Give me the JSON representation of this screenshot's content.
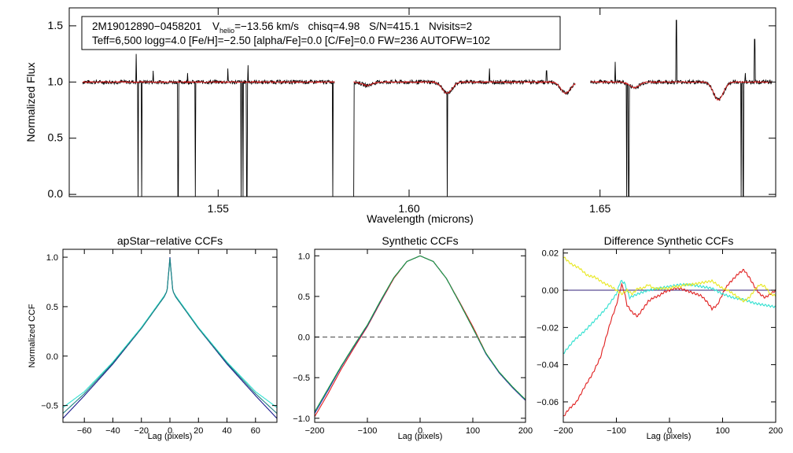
{
  "chart_data": [
    {
      "type": "line",
      "id": "spectrum",
      "xlabel": "Wavelength (microns)",
      "ylabel": "Normalized Flux",
      "xlim": [
        1.511,
        1.696
      ],
      "ylim": [
        -0.02,
        1.66
      ],
      "xticks": [
        1.55,
        1.6,
        1.65
      ],
      "xtick_labels": [
        "1.55",
        "1.60",
        "1.65"
      ],
      "yticks": [
        0.0,
        0.5,
        1.0,
        1.5
      ],
      "ytick_labels": [
        "0.0",
        "0.5",
        "1.0",
        "1.5"
      ],
      "annotation": {
        "star": "2M19012890−0458201",
        "vhelio_prefix": "V",
        "vhelio_sub": "helio",
        "vhelio_value": "=−13.56 km/s",
        "chisq": "chisq=4.98",
        "snr": "S/N=415.1",
        "nvisits": "Nvisits=2",
        "line2": "Teff=6,500 logg=4.0 [Fe/H]=−2.50 [alpha/Fe]=0.0 [C/Fe]=0.0 FW=236 AUTOFW=102"
      },
      "chips": [
        [
          1.5145,
          1.5805
        ],
        [
          1.5855,
          1.6435
        ],
        [
          1.6475,
          1.695
        ]
      ],
      "continuum": 1.0,
      "absorption_features": [
        {
          "center": 1.589,
          "depth": 0.03
        },
        {
          "center": 1.61,
          "depth": 0.1
        },
        {
          "center": 1.641,
          "depth": 0.1
        },
        {
          "center": 1.659,
          "depth": 0.05
        },
        {
          "center": 1.681,
          "depth": 0.16
        }
      ],
      "bad_pixels": [
        1.529,
        1.53,
        1.5395,
        1.544,
        1.556,
        1.5565,
        1.5575,
        1.58,
        1.5855,
        1.61,
        1.657,
        1.6575,
        1.687,
        1.6875
      ],
      "emission_spikes": [
        {
          "x": 1.5285,
          "y": 1.25
        },
        {
          "x": 1.533,
          "y": 1.1
        },
        {
          "x": 1.542,
          "y": 1.08
        },
        {
          "x": 1.5525,
          "y": 1.12
        },
        {
          "x": 1.5578,
          "y": 1.15
        },
        {
          "x": 1.621,
          "y": 1.12
        },
        {
          "x": 1.636,
          "y": 1.1
        },
        {
          "x": 1.644,
          "y": 1.08
        },
        {
          "x": 1.654,
          "y": 1.18
        },
        {
          "x": 1.67,
          "y": 1.55
        },
        {
          "x": 1.688,
          "y": 1.08
        },
        {
          "x": 1.6905,
          "y": 1.38
        }
      ],
      "series": [
        {
          "name": "observed",
          "color": "#000000"
        },
        {
          "name": "model",
          "color": "#e02020"
        }
      ]
    },
    {
      "type": "line",
      "id": "apstar_ccf",
      "title": "apStar−relative CCFs",
      "xlabel": "Lag (pixels)",
      "ylabel": "Normalized CCF",
      "xlim": [
        -75,
        75
      ],
      "ylim": [
        -0.67,
        1.08
      ],
      "xticks": [
        -60,
        -40,
        -20,
        0,
        20,
        40,
        60
      ],
      "xtick_labels": [
        "−60",
        "−40",
        "−20",
        "0",
        "20",
        "40",
        "60"
      ],
      "yticks": [
        -0.5,
        0.0,
        0.5,
        1.0
      ],
      "ytick_labels": [
        "−0.5",
        "0.0",
        "0.5",
        "1.0"
      ],
      "series": [
        {
          "name": "visit-1",
          "color": "#1a1a8c",
          "x": [
            -75,
            -60,
            -40,
            -20,
            -10,
            -4,
            -2,
            0,
            2,
            4,
            10,
            20,
            40,
            60,
            75
          ],
          "y": [
            -0.63,
            -0.4,
            -0.08,
            0.28,
            0.48,
            0.6,
            0.66,
            1.0,
            0.66,
            0.6,
            0.48,
            0.28,
            -0.08,
            -0.4,
            -0.63
          ]
        },
        {
          "name": "visit-2",
          "color": "#30e0d0",
          "x": [
            -75,
            -60,
            -40,
            -20,
            -10,
            -4,
            -2,
            0,
            2,
            4,
            10,
            20,
            40,
            60,
            75
          ],
          "y": [
            -0.52,
            -0.36,
            -0.06,
            0.29,
            0.49,
            0.61,
            0.66,
            0.98,
            0.66,
            0.61,
            0.49,
            0.29,
            -0.06,
            -0.36,
            -0.52
          ]
        },
        {
          "name": "visit-3",
          "color": "#208080",
          "x": [
            -75,
            -60,
            -40,
            -20,
            -10,
            -4,
            -2,
            0,
            2,
            4,
            10,
            20,
            40,
            60,
            75
          ],
          "y": [
            -0.58,
            -0.38,
            -0.07,
            0.28,
            0.48,
            0.6,
            0.66,
            0.99,
            0.66,
            0.6,
            0.48,
            0.28,
            -0.07,
            -0.38,
            -0.58
          ]
        }
      ]
    },
    {
      "type": "line",
      "id": "synthetic_ccf",
      "title": "Synthetic CCFs",
      "xlabel": "Lag (pixels)",
      "xlim": [
        -200,
        200
      ],
      "ylim": [
        -1.05,
        1.08
      ],
      "xticks": [
        -200,
        -100,
        0,
        100,
        200
      ],
      "xtick_labels": [
        "−200",
        "−100",
        "0",
        "100",
        "200"
      ],
      "yticks": [
        -1.0,
        -0.5,
        0.0,
        0.5,
        1.0
      ],
      "ytick_labels": [
        "−1.0",
        "−0.5",
        "0.0",
        "0.5",
        "1.0"
      ],
      "zero_line": 0.0,
      "series": [
        {
          "name": "synth-red",
          "color": "#e02020",
          "x": [
            -200,
            -175,
            -150,
            -125,
            -100,
            -75,
            -50,
            -25,
            0,
            25,
            50,
            75,
            100,
            125,
            150,
            175,
            200
          ],
          "y": [
            -0.98,
            -0.7,
            -0.4,
            -0.13,
            0.13,
            0.43,
            0.72,
            0.93,
            1.0,
            0.93,
            0.72,
            0.43,
            0.13,
            -0.2,
            -0.44,
            -0.62,
            -0.78
          ]
        },
        {
          "name": "synth-blue",
          "color": "#2030c0",
          "x": [
            -200,
            -175,
            -150,
            -125,
            -100,
            -75,
            -50,
            -25,
            0,
            25,
            50,
            75,
            100,
            125,
            150,
            175,
            200
          ],
          "y": [
            -0.94,
            -0.66,
            -0.37,
            -0.11,
            0.14,
            0.44,
            0.73,
            0.93,
            1.0,
            0.93,
            0.72,
            0.42,
            0.11,
            -0.21,
            -0.44,
            -0.62,
            -0.78
          ]
        },
        {
          "name": "synth-green",
          "color": "#20a040",
          "x": [
            -200,
            -175,
            -150,
            -125,
            -100,
            -75,
            -50,
            -25,
            0,
            25,
            50,
            75,
            100,
            125,
            150,
            175,
            200
          ],
          "y": [
            -0.92,
            -0.64,
            -0.36,
            -0.1,
            0.15,
            0.45,
            0.73,
            0.93,
            1.0,
            0.93,
            0.72,
            0.42,
            0.11,
            -0.2,
            -0.43,
            -0.61,
            -0.77
          ]
        }
      ]
    },
    {
      "type": "line",
      "id": "diff_ccf",
      "title": "Difference Synthetic CCFs",
      "xlabel": "Lag (pixels)",
      "xlim": [
        -200,
        200
      ],
      "ylim": [
        -0.071,
        0.022
      ],
      "xticks": [
        -200,
        -100,
        0,
        100,
        200
      ],
      "xtick_labels": [
        "−200",
        "−100",
        "0",
        "100",
        "200"
      ],
      "yticks": [
        -0.06,
        -0.04,
        -0.02,
        0.0,
        0.02
      ],
      "ytick_labels": [
        "−0.06",
        "−0.04",
        "−0.02",
        "0.00",
        "0.02"
      ],
      "series": [
        {
          "name": "baseline",
          "color": "#30207a",
          "x": [
            -200,
            200
          ],
          "y": [
            0.0,
            0.0
          ]
        },
        {
          "name": "diff-red",
          "color": "#e02020",
          "x": [
            -200,
            -190,
            -175,
            -160,
            -145,
            -130,
            -120,
            -110,
            -100,
            -95,
            -90,
            -85,
            -80,
            -70,
            -60,
            -50,
            -40,
            -30,
            -20,
            -10,
            0,
            10,
            20,
            40,
            60,
            70,
            80,
            90,
            100,
            110,
            120,
            130,
            140,
            150,
            160,
            170,
            180,
            190,
            200
          ],
          "y": [
            -0.068,
            -0.064,
            -0.06,
            -0.052,
            -0.045,
            -0.036,
            -0.026,
            -0.016,
            -0.008,
            -0.002,
            0.003,
            -0.001,
            -0.008,
            -0.012,
            -0.014,
            -0.01,
            -0.006,
            -0.004,
            -0.003,
            -0.001,
            0.0,
            0.001,
            0.001,
            -0.001,
            -0.003,
            -0.006,
            -0.01,
            -0.008,
            -0.002,
            0.003,
            0.006,
            0.009,
            0.011,
            0.007,
            0.002,
            -0.002,
            -0.004,
            -0.002,
            0.0
          ]
        },
        {
          "name": "diff-cyan",
          "color": "#30e0d0",
          "x": [
            -200,
            -180,
            -160,
            -140,
            -120,
            -100,
            -92,
            -85,
            -80,
            -75,
            -60,
            -40,
            -20,
            0,
            20,
            40,
            60,
            80,
            100,
            120,
            140,
            160,
            180,
            200
          ],
          "y": [
            -0.034,
            -0.027,
            -0.022,
            -0.016,
            -0.01,
            -0.002,
            0.005,
            0.004,
            0.0,
            -0.004,
            -0.002,
            0.0,
            0.001,
            0.002,
            0.003,
            0.003,
            0.002,
            0.001,
            -0.002,
            -0.004,
            -0.005,
            -0.007,
            -0.008,
            -0.009
          ]
        },
        {
          "name": "diff-yellow",
          "color": "#e8e820",
          "x": [
            -200,
            -185,
            -170,
            -155,
            -140,
            -125,
            -110,
            -100,
            -95,
            -90,
            -80,
            -70,
            -60,
            -50,
            -40,
            -30,
            -20,
            -10,
            0,
            10,
            20,
            30,
            40,
            60,
            80,
            90,
            100,
            110,
            120,
            130,
            140,
            150,
            160,
            170,
            180,
            190,
            200
          ],
          "y": [
            0.018,
            0.014,
            0.012,
            0.008,
            0.007,
            0.004,
            0.002,
            0.0,
            -0.001,
            -0.002,
            0.0,
            -0.002,
            0.001,
            0.001,
            0.003,
            0.001,
            0.001,
            0.001,
            0.001,
            0.002,
            0.002,
            0.003,
            0.003,
            0.004,
            0.005,
            0.003,
            0.001,
            0.0,
            -0.002,
            -0.004,
            -0.006,
            -0.004,
            0.0,
            0.003,
            0.002,
            -0.002,
            -0.003
          ]
        }
      ]
    }
  ]
}
